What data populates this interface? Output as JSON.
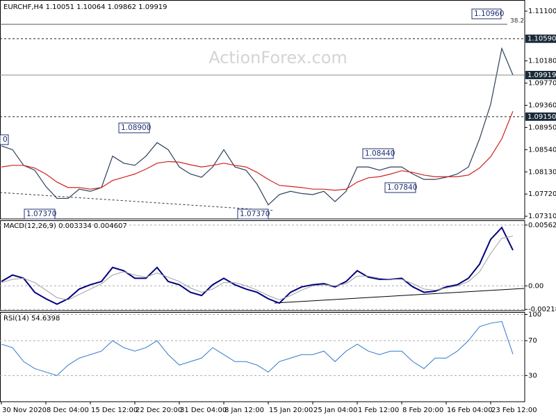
{
  "title": "EURCHF,H4 1.10051 1.10064 1.09862 1.09919",
  "watermark": "ActionForex.com",
  "annotations": [
    "1.10960",
    "38.2",
    "1.08900",
    "1.08440",
    "1.07840",
    "1.07370",
    "1.07370",
    "0"
  ],
  "chart_data": [
    {
      "type": "line",
      "series": [
        {
          "color": "#2b3f58",
          "width": 1.2,
          "values": [
            1.0861,
            1.0854,
            1.0825,
            1.0816,
            1.0786,
            1.0764,
            1.0764,
            1.0781,
            1.0777,
            1.0784,
            1.0842,
            1.0829,
            1.0825,
            1.0842,
            1.0867,
            1.0854,
            1.0822,
            1.0809,
            1.0803,
            1.0822,
            1.0854,
            1.0822,
            1.0816,
            1.079,
            1.0752,
            1.0771,
            1.0777,
            1.0773,
            1.0771,
            1.0777,
            1.0758,
            1.0777,
            1.0822,
            1.0822,
            1.0816,
            1.0822,
            1.0822,
            1.0809,
            1.0799,
            1.0799,
            1.0803,
            1.0809,
            1.0822,
            1.0874,
            1.0938,
            1.1041,
            1.0992
          ]
        },
        {
          "color": "#d02020",
          "width": 1.2,
          "values": [
            1.0822,
            1.0825,
            1.0825,
            1.082,
            1.0809,
            1.0794,
            1.0784,
            1.0784,
            1.0781,
            1.0784,
            1.0797,
            1.0803,
            1.0809,
            1.0818,
            1.0829,
            1.0832,
            1.0831,
            1.0826,
            1.0822,
            1.0825,
            1.0829,
            1.0825,
            1.0822,
            1.0812,
            1.0799,
            1.0788,
            1.0786,
            1.0784,
            1.0781,
            1.0781,
            1.0779,
            1.0781,
            1.0794,
            1.0802,
            1.0804,
            1.0809,
            1.0815,
            1.0812,
            1.0807,
            1.0804,
            1.0804,
            1.0804,
            1.0807,
            1.082,
            1.0841,
            1.0874,
            1.0925
          ]
        }
      ],
      "levels": [
        {
          "value": 1.1059,
          "label": "1.10590",
          "dash": true
        },
        {
          "value": 1.09919,
          "label": "1.09919",
          "dash": false
        },
        {
          "value": 1.0915,
          "label": "1.09150",
          "dash": true
        }
      ],
      "ylim": [
        1.0726,
        1.1128
      ],
      "yticks": [
        {
          "value": 1.111,
          "label": "1.11100"
        },
        {
          "value": 1.1018,
          "label": "1.10180"
        },
        {
          "value": 1.0977,
          "label": "1.09770"
        },
        {
          "value": 1.0936,
          "label": "1.09360"
        },
        {
          "value": 1.0895,
          "label": "1.08950"
        },
        {
          "value": 1.0854,
          "label": "1.08540"
        },
        {
          "value": 1.0813,
          "label": "1.08130"
        },
        {
          "value": 1.0772,
          "label": "1.07720"
        },
        {
          "value": 1.0731,
          "label": "1.07310"
        }
      ],
      "grid": false
    },
    {
      "type": "line",
      "title": "MACD(12,26,9) 0.003334 0.004607",
      "series": [
        {
          "color": "#00007f",
          "width": 2,
          "values": [
            0.0004,
            0.001,
            0.0007,
            -0.0006,
            -0.0012,
            -0.0017,
            -0.0012,
            -0.0003,
            0.0001,
            0.0004,
            0.0017,
            0.0014,
            0.0007,
            0.0007,
            0.0017,
            0.0004,
            0.0001,
            -0.0006,
            -0.0009,
            0.0001,
            0.0007,
            0.0001,
            -0.0003,
            -0.0006,
            -0.0012,
            -0.0016,
            -0.0006,
            -0.0001,
            0.0001,
            0.0002,
            -0.0001,
            0.0004,
            0.0014,
            0.0008,
            0.0006,
            0.0006,
            0.0007,
            -0.0001,
            -0.0006,
            -0.0005,
            -0.0001,
            0.0001,
            0.0007,
            0.002,
            0.0043,
            0.0054,
            0.0033
          ]
        },
        {
          "color": "#a0a0a0",
          "width": 1,
          "values": [
            0.0003,
            0.0006,
            0.0007,
            0.0003,
            -0.0004,
            -0.0011,
            -0.0013,
            -0.0008,
            -0.0003,
            0.0002,
            0.001,
            0.0013,
            0.001,
            0.0008,
            0.0012,
            0.0008,
            0.0004,
            -0.0002,
            -0.0006,
            -0.0003,
            0.0003,
            0.0003,
            0,
            -0.0004,
            -0.0009,
            -0.0013,
            -0.0009,
            -0.0004,
            0,
            0.0001,
            0,
            0.0002,
            0.0009,
            0.0009,
            0.0007,
            0.0006,
            0.0006,
            0.0002,
            -0.0003,
            -0.0004,
            -0.0002,
            0,
            0.0004,
            0.0013,
            0.003,
            0.0044,
            0.0046
          ]
        }
      ],
      "ylim": [
        -0.0023,
        0.006
      ],
      "yticks": [
        0.005625,
        {
          "value": 0,
          "label": "0.00"
        },
        -0.002185
      ],
      "grid": true
    },
    {
      "type": "line",
      "title": "RSI(14) 54.6398",
      "categories": [
        "30 Nov 2020",
        null,
        null,
        null,
        "8 Dec 04:00",
        null,
        null,
        null,
        "15 Dec 12:00",
        null,
        null,
        null,
        "22 Dec 20:00",
        null,
        null,
        null,
        "31 Dec 04:00",
        null,
        null,
        null,
        "8 Jan 12:00",
        null,
        null,
        null,
        "15 Jan 20:00",
        null,
        null,
        null,
        "25 Jan 04:00",
        null,
        null,
        null,
        "1 Feb 12:00",
        null,
        null,
        null,
        "8 Feb 20:00",
        null,
        null,
        null,
        "16 Feb 04:00",
        null,
        null,
        null,
        "23 Feb 12:00",
        null,
        null
      ],
      "series": [
        {
          "color": "#2f78c8",
          "width": 1,
          "values": [
            66,
            62,
            46,
            38,
            34,
            30,
            42,
            50,
            54,
            58,
            70,
            62,
            58,
            62,
            70,
            54,
            42,
            46,
            50,
            62,
            54,
            46,
            46,
            42,
            34,
            46,
            50,
            54,
            54,
            58,
            46,
            58,
            66,
            58,
            54,
            58,
            58,
            46,
            38,
            50,
            50,
            58,
            70,
            86,
            90,
            92,
            54.6
          ]
        }
      ],
      "ylim": [
        0,
        102
      ],
      "yticks": [
        100,
        70,
        30
      ],
      "grid": true
    }
  ]
}
